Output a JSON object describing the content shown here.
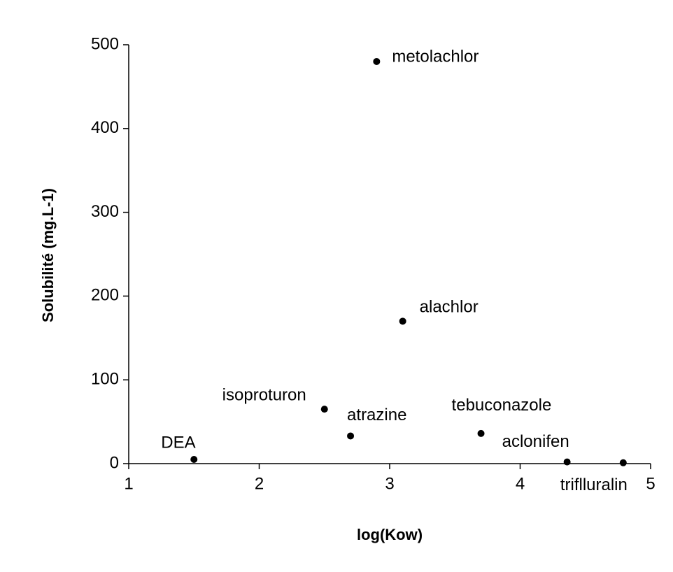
{
  "chart_data": {
    "type": "scatter",
    "xlabel": "log(Kow)",
    "ylabel": "Solubilité (mg.L-1)",
    "labels": [
      "DEA",
      "isoproturon",
      "atrazine",
      "metolachlor",
      "alachlor",
      "tebuconazole",
      "aclonifen",
      "triflluralin"
    ],
    "x": [
      1.5,
      2.5,
      2.7,
      2.9,
      3.1,
      3.7,
      4.36,
      4.79
    ],
    "values": [
      5,
      65,
      33,
      480,
      170,
      36,
      2,
      1
    ],
    "color": "#000000",
    "xlim": [
      1,
      5
    ],
    "xticks": [
      1,
      2,
      3,
      4,
      5
    ],
    "ylim": [
      0,
      500
    ],
    "yticks": [
      0,
      100,
      200,
      300,
      400,
      500
    ],
    "grid": false
  }
}
